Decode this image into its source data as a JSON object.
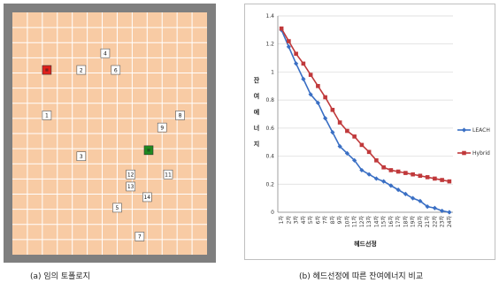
{
  "captions": {
    "left": "(a) 임의 토폴로지",
    "right": "(b) 헤드선정에 따른 잔여에너지 비교"
  },
  "topology": {
    "grid_rows": 16,
    "grid_cols": 13,
    "colors": {
      "frame": "#7f7f7f",
      "field": "#f8cba4",
      "grid": "#ffffff",
      "sink_red": "#e0201b",
      "sink_green": "#1f8a1f"
    },
    "nodes": [
      {
        "id": "4",
        "label": "4",
        "kind": "node",
        "col": 6.2,
        "row": 2.7
      },
      {
        "id": "2",
        "label": "2",
        "kind": "node",
        "col": 4.6,
        "row": 3.8
      },
      {
        "id": "6",
        "label": "6",
        "kind": "node",
        "col": 6.9,
        "row": 3.8
      },
      {
        "id": "r",
        "label": "",
        "kind": "red",
        "col": 2.3,
        "row": 3.8
      },
      {
        "id": "1",
        "label": "1",
        "kind": "node",
        "col": 2.3,
        "row": 6.8
      },
      {
        "id": "8",
        "label": "8",
        "kind": "node",
        "col": 11.2,
        "row": 6.8
      },
      {
        "id": "9",
        "label": "9",
        "kind": "node",
        "col": 10.0,
        "row": 7.6
      },
      {
        "id": "g",
        "label": "",
        "kind": "green",
        "col": 9.1,
        "row": 9.1
      },
      {
        "id": "3",
        "label": "3",
        "kind": "node",
        "col": 4.6,
        "row": 9.5
      },
      {
        "id": "12",
        "label": "12",
        "kind": "node",
        "col": 7.9,
        "row": 10.7
      },
      {
        "id": "11",
        "label": "11",
        "kind": "node",
        "col": 10.4,
        "row": 10.7
      },
      {
        "id": "13",
        "label": "13",
        "kind": "node",
        "col": 7.9,
        "row": 11.5
      },
      {
        "id": "14",
        "label": "14",
        "kind": "node",
        "col": 9.0,
        "row": 12.2
      },
      {
        "id": "5",
        "label": "5",
        "kind": "node",
        "col": 7.0,
        "row": 12.9
      },
      {
        "id": "7",
        "label": "7",
        "kind": "node",
        "col": 8.5,
        "row": 14.8
      }
    ]
  },
  "chart_data": {
    "type": "line",
    "title": "",
    "xlabel": "헤드선정",
    "ylabel": "잔여에너지",
    "ylim": [
      0,
      1.4
    ],
    "yticks": [
      "0",
      "0.2",
      "0.4",
      "0.6",
      "0.8",
      "1",
      "1.2",
      "1.4"
    ],
    "categories": [
      "1차",
      "2차",
      "3차",
      "4차",
      "5차",
      "6차",
      "7차",
      "8차",
      "9차",
      "10차",
      "11차",
      "12차",
      "13차",
      "14차",
      "15차",
      "16차",
      "17차",
      "18차",
      "19차",
      "20차",
      "21차",
      "22차",
      "23차",
      "24차"
    ],
    "grid": true,
    "legend_position": "right",
    "series": [
      {
        "name": "LEACH",
        "color": "#3a6fc4",
        "marker": "diamond",
        "values": [
          1.3,
          1.18,
          1.06,
          0.95,
          0.84,
          0.78,
          0.67,
          0.57,
          0.47,
          0.42,
          0.37,
          0.3,
          0.27,
          0.24,
          0.22,
          0.19,
          0.16,
          0.13,
          0.1,
          0.08,
          0.04,
          0.03,
          0.01,
          0.0
        ]
      },
      {
        "name": "Hybrid",
        "color": "#c0393b",
        "marker": "square",
        "values": [
          1.31,
          1.22,
          1.13,
          1.06,
          0.98,
          0.9,
          0.82,
          0.73,
          0.64,
          0.58,
          0.54,
          0.48,
          0.43,
          0.37,
          0.32,
          0.3,
          0.29,
          0.28,
          0.27,
          0.26,
          0.25,
          0.24,
          0.23,
          0.22
        ]
      }
    ]
  }
}
